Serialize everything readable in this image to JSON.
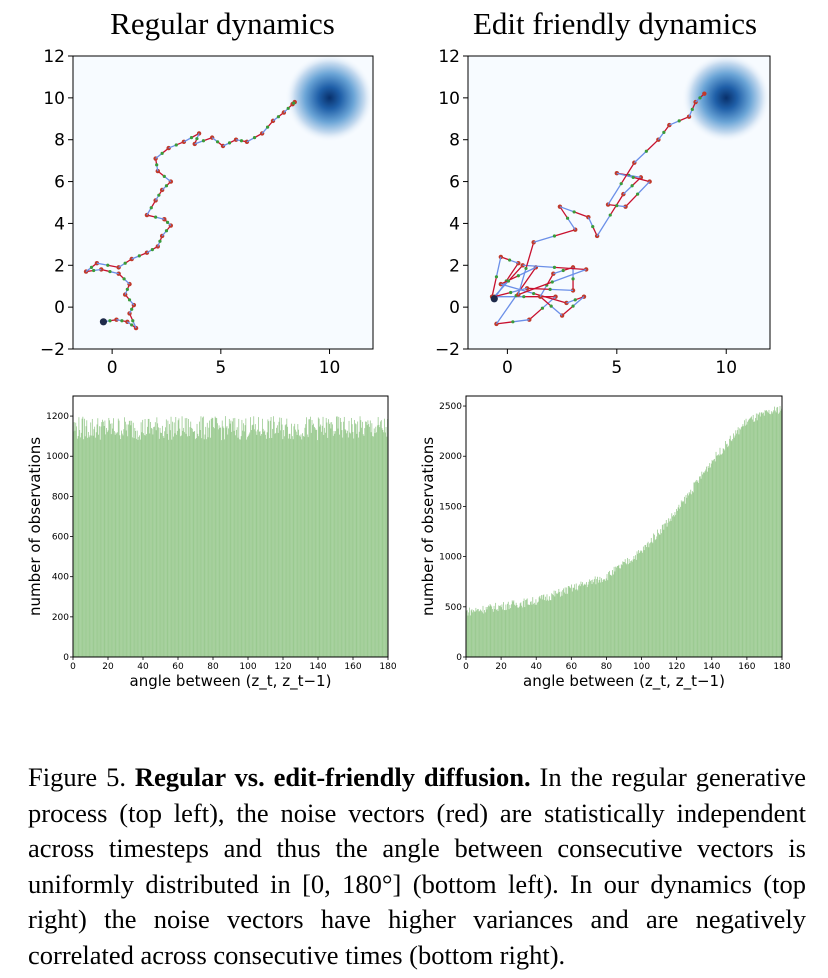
{
  "figure": {
    "panels": {
      "top_left_title": "Regular dynamics",
      "top_right_title": "Edit friendly dynamics"
    },
    "caption": {
      "label": "Figure 5.",
      "bold": "Regular vs. edit-friendly diffusion.",
      "text": "In the regular generative process (top left), the noise vectors (red) are statistically independent across timesteps and thus the angle between consecutive vectors is uniformly distributed in [0, 180°] (bottom left). In our dynamics (top right) the noise vectors have higher variances and are negatively correlated across consecutive times (bottom right)."
    }
  },
  "chart_data": [
    {
      "type": "line",
      "title": "Regular dynamics",
      "xticks": [
        "0",
        "5",
        "10"
      ],
      "yticks": [
        "−2",
        "0",
        "2",
        "4",
        "6",
        "8",
        "10",
        "12"
      ],
      "xlim": [
        -1.8,
        12
      ],
      "ylim": [
        -2,
        12
      ],
      "target_center": [
        10,
        10
      ],
      "series": [
        {
          "name": "trajectory",
          "color": "#c8102e",
          "points": [
            [
              -0.4,
              -0.7
            ],
            [
              0.2,
              -0.6
            ],
            [
              0.7,
              -0.7
            ],
            [
              1.1,
              -1.0
            ],
            [
              0.8,
              -0.3
            ],
            [
              1.0,
              0.1
            ],
            [
              0.6,
              0.6
            ],
            [
              0.8,
              1.1
            ],
            [
              0.3,
              1.6
            ],
            [
              -0.5,
              1.8
            ],
            [
              -1.2,
              1.7
            ],
            [
              -0.7,
              2.1
            ],
            [
              0.3,
              1.9
            ],
            [
              0.9,
              2.3
            ],
            [
              1.6,
              2.6
            ],
            [
              2.1,
              2.9
            ],
            [
              2.3,
              3.4
            ],
            [
              2.7,
              3.9
            ],
            [
              2.4,
              4.2
            ],
            [
              1.6,
              4.4
            ],
            [
              2.0,
              5.1
            ],
            [
              2.3,
              5.6
            ],
            [
              2.7,
              6.0
            ],
            [
              2.1,
              6.5
            ],
            [
              2.0,
              7.1
            ],
            [
              2.6,
              7.6
            ],
            [
              3.3,
              7.9
            ],
            [
              4.0,
              8.3
            ],
            [
              3.8,
              7.8
            ],
            [
              4.6,
              8.1
            ],
            [
              5.1,
              7.7
            ],
            [
              5.7,
              8.0
            ],
            [
              6.2,
              7.9
            ],
            [
              6.9,
              8.3
            ],
            [
              7.4,
              8.9
            ],
            [
              7.9,
              9.3
            ],
            [
              8.3,
              9.7
            ],
            [
              8.4,
              9.8
            ]
          ]
        }
      ]
    },
    {
      "type": "line",
      "title": "Edit friendly dynamics",
      "xticks": [
        "0",
        "5",
        "10"
      ],
      "yticks": [
        "−2",
        "0",
        "2",
        "4",
        "6",
        "8",
        "10",
        "12"
      ],
      "xlim": [
        -1.8,
        12
      ],
      "ylim": [
        -2,
        12
      ],
      "target_center": [
        10,
        10
      ],
      "series": [
        {
          "name": "trajectory",
          "color": "#c8102e",
          "points": [
            [
              -0.6,
              0.4
            ],
            [
              0.5,
              2.1
            ],
            [
              -0.3,
              2.4
            ],
            [
              -0.7,
              0.5
            ],
            [
              2.2,
              0.5
            ],
            [
              1.0,
              -0.6
            ],
            [
              -0.5,
              -0.8
            ],
            [
              1.3,
              1.9
            ],
            [
              -0.3,
              1.1
            ],
            [
              2.7,
              0.2
            ],
            [
              3.5,
              0.5
            ],
            [
              2.5,
              -0.4
            ],
            [
              1.5,
              0.5
            ],
            [
              2.1,
              1.6
            ],
            [
              3.0,
              1.9
            ],
            [
              3.0,
              0.8
            ],
            [
              0.9,
              0.9
            ],
            [
              -0.6,
              0.5
            ],
            [
              0.7,
              2.0
            ],
            [
              3.6,
              1.8
            ],
            [
              0.5,
              0.6
            ],
            [
              1.2,
              3.1
            ],
            [
              3.1,
              3.7
            ],
            [
              2.4,
              4.8
            ],
            [
              3.7,
              4.3
            ],
            [
              4.1,
              3.4
            ],
            [
              5.3,
              5.4
            ],
            [
              6.1,
              6.2
            ],
            [
              5.0,
              6.4
            ],
            [
              6.5,
              6.0
            ],
            [
              5.4,
              4.8
            ],
            [
              4.6,
              4.9
            ],
            [
              5.8,
              6.9
            ],
            [
              6.9,
              8.0
            ],
            [
              7.4,
              8.7
            ],
            [
              8.3,
              9.1
            ],
            [
              8.6,
              9.8
            ],
            [
              9.0,
              10.2
            ]
          ]
        }
      ]
    },
    {
      "type": "bar",
      "title": "",
      "xlabel": "angle between (z_t, z_t−1)",
      "ylabel": "number of observations",
      "xlim": [
        0,
        180
      ],
      "ylim": [
        0,
        1300
      ],
      "xticks": [
        "0",
        "20",
        "40",
        "60",
        "80",
        "100",
        "120",
        "140",
        "160",
        "180"
      ],
      "yticks": [
        "0",
        "200",
        "400",
        "600",
        "800",
        "1000",
        "1200"
      ],
      "color": "#8fc484",
      "distribution": "uniform",
      "mean_count": 1140
    },
    {
      "type": "bar",
      "title": "",
      "xlabel": "angle between (z_t, z_t−1)",
      "ylabel": "number of observations",
      "xlim": [
        0,
        180
      ],
      "ylim": [
        0,
        2600
      ],
      "xticks": [
        "0",
        "20",
        "40",
        "60",
        "80",
        "100",
        "120",
        "140",
        "160",
        "180"
      ],
      "yticks": [
        "0",
        "500",
        "1000",
        "1500",
        "2000",
        "2500"
      ],
      "color": "#8fc484",
      "distribution": "increasing",
      "count_samples": [
        [
          0,
          450
        ],
        [
          40,
          560
        ],
        [
          80,
          800
        ],
        [
          100,
          1050
        ],
        [
          120,
          1450
        ],
        [
          140,
          1950
        ],
        [
          160,
          2350
        ],
        [
          180,
          2480
        ]
      ]
    }
  ]
}
